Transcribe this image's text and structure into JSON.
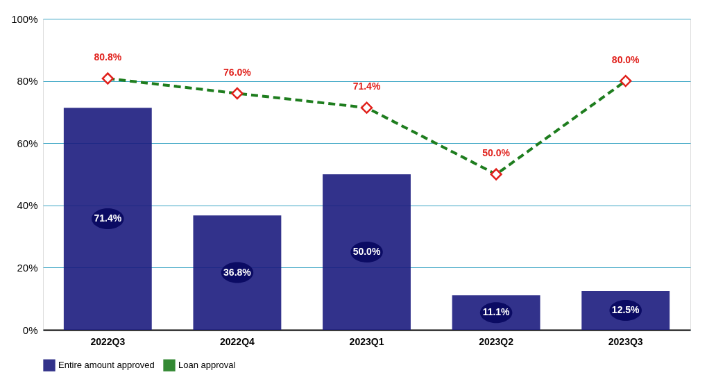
{
  "chart_data": {
    "type": "bar",
    "categories": [
      "2022Q3",
      "2022Q4",
      "2023Q1",
      "2023Q2",
      "2023Q3"
    ],
    "series": [
      {
        "name": "Entire amount approved",
        "color": "#1c1c7e",
        "values": [
          71.4,
          36.8,
          50.0,
          11.1,
          12.5
        ],
        "value_labels": [
          "71.4%",
          "36.8%",
          "50.0%",
          "11.1%",
          "12.5%"
        ]
      },
      {
        "name": "Loan approval",
        "type": "line",
        "color": "#1e7d1e",
        "values": [
          80.8,
          76.0,
          71.4,
          50.0,
          80.0
        ],
        "marker": "diamond",
        "line_style": "dashed",
        "value_labels": [
          "80.8%",
          "76.0%",
          "71.4%",
          "50.0%",
          "80.0%"
        ]
      }
    ],
    "ylim": [
      0,
      100
    ],
    "yticks": [
      {
        "value": 0,
        "label": "0%"
      },
      {
        "value": 20,
        "label": "20%"
      },
      {
        "value": 40,
        "label": "40%"
      },
      {
        "value": 60,
        "label": "60%"
      },
      {
        "value": 80,
        "label": "80%"
      },
      {
        "value": 100,
        "label": "100%"
      }
    ],
    "grid": "y",
    "legend": "bottom"
  }
}
